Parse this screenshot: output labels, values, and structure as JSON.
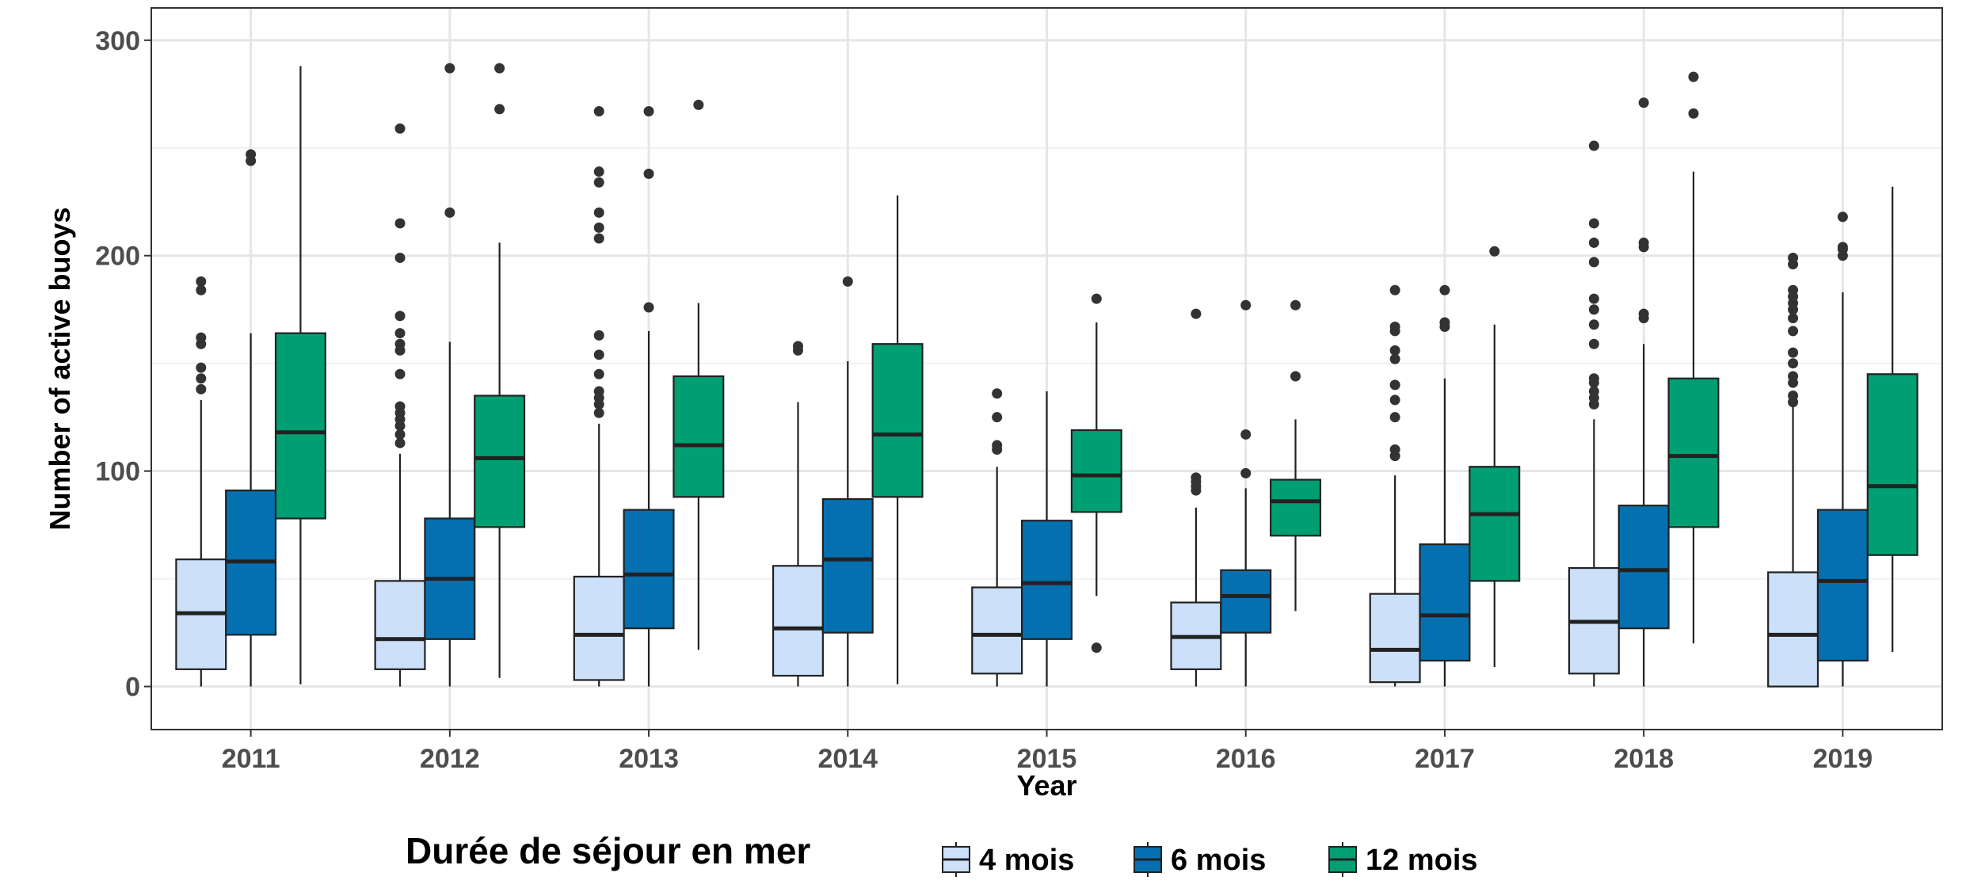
{
  "chart_data": {
    "type": "boxplot",
    "xlabel": "Year",
    "ylabel": "Number of active buoys",
    "categories": [
      "2011",
      "2012",
      "2013",
      "2014",
      "2015",
      "2016",
      "2017",
      "2018",
      "2019"
    ],
    "ylim": [
      -20,
      315
    ],
    "yticks": [
      0,
      100,
      200,
      300
    ],
    "grid": true,
    "legend": {
      "title": "Durée de séjour en mer",
      "position": "bottom"
    },
    "series": [
      {
        "name": "4 mois",
        "color": "#cce0fa",
        "boxes": [
          {
            "min": 0,
            "q1": 8,
            "median": 34,
            "q3": 59,
            "max": 133,
            "outliers": [
              138,
              143,
              148,
              159,
              162,
              184,
              188
            ]
          },
          {
            "min": 0,
            "q1": 8,
            "median": 22,
            "q3": 49,
            "max": 108,
            "outliers": [
              113,
              117,
              121,
              124,
              127,
              130,
              145,
              156,
              159,
              164,
              172,
              199,
              215,
              259
            ]
          },
          {
            "min": 0,
            "q1": 3,
            "median": 24,
            "q3": 51,
            "max": 122,
            "outliers": [
              127,
              131,
              134,
              137,
              145,
              154,
              163,
              208,
              213,
              220,
              234,
              239,
              267
            ]
          },
          {
            "min": 0,
            "q1": 5,
            "median": 27,
            "q3": 56,
            "max": 132,
            "outliers": [
              156,
              158
            ]
          },
          {
            "min": 0,
            "q1": 6,
            "median": 24,
            "q3": 46,
            "max": 102,
            "outliers": [
              110,
              112,
              125,
              136
            ]
          },
          {
            "min": 0,
            "q1": 8,
            "median": 23,
            "q3": 39,
            "max": 83,
            "outliers": [
              91,
              93,
              95,
              97,
              173
            ]
          },
          {
            "min": 0,
            "q1": 2,
            "median": 17,
            "q3": 43,
            "max": 98,
            "outliers": [
              107,
              110,
              125,
              133,
              140,
              152,
              156,
              165,
              167,
              184
            ]
          },
          {
            "min": 0,
            "q1": 6,
            "median": 30,
            "q3": 55,
            "max": 124,
            "outliers": [
              131,
              134,
              137,
              141,
              143,
              159,
              168,
              175,
              180,
              197,
              206,
              215,
              251
            ]
          },
          {
            "min": 0,
            "q1": 0,
            "median": 24,
            "q3": 53,
            "max": 130,
            "outliers": [
              132,
              135,
              141,
              144,
              150,
              155,
              165,
              171,
              175,
              178,
              181,
              184,
              196,
              199
            ]
          }
        ]
      },
      {
        "name": "6 mois",
        "color": "#0570b0",
        "boxes": [
          {
            "min": 0,
            "q1": 24,
            "median": 58,
            "q3": 91,
            "max": 164,
            "outliers": [
              244,
              247
            ]
          },
          {
            "min": 0,
            "q1": 22,
            "median": 50,
            "q3": 78,
            "max": 160,
            "outliers": [
              220,
              287
            ]
          },
          {
            "min": 0,
            "q1": 27,
            "median": 52,
            "q3": 82,
            "max": 165,
            "outliers": [
              176,
              238,
              267
            ]
          },
          {
            "min": 0,
            "q1": 25,
            "median": 59,
            "q3": 87,
            "max": 151,
            "outliers": [
              188
            ]
          },
          {
            "min": 0,
            "q1": 22,
            "median": 48,
            "q3": 77,
            "max": 137,
            "outliers": []
          },
          {
            "min": 0,
            "q1": 25,
            "median": 42,
            "q3": 54,
            "max": 92,
            "outliers": [
              99,
              117,
              177
            ]
          },
          {
            "min": 0,
            "q1": 12,
            "median": 33,
            "q3": 66,
            "max": 143,
            "outliers": [
              167,
              169,
              184
            ]
          },
          {
            "min": 0,
            "q1": 27,
            "median": 54,
            "q3": 84,
            "max": 159,
            "outliers": [
              171,
              173,
              204,
              206,
              271
            ]
          },
          {
            "min": 0,
            "q1": 12,
            "median": 49,
            "q3": 82,
            "max": 183,
            "outliers": [
              200,
              203,
              204,
              218
            ]
          }
        ]
      },
      {
        "name": "12 mois",
        "color": "#009e73",
        "boxes": [
          {
            "min": 1,
            "q1": 78,
            "median": 118,
            "q3": 164,
            "max": 288,
            "outliers": []
          },
          {
            "min": 4,
            "q1": 74,
            "median": 106,
            "q3": 135,
            "max": 206,
            "outliers": [
              268,
              287
            ]
          },
          {
            "min": 17,
            "q1": 88,
            "median": 112,
            "q3": 144,
            "max": 178,
            "outliers": [
              270
            ]
          },
          {
            "min": 1,
            "q1": 88,
            "median": 117,
            "q3": 159,
            "max": 228,
            "outliers": []
          },
          {
            "min": 42,
            "q1": 81,
            "median": 98,
            "q3": 119,
            "max": 169,
            "outliers": [
              18,
              180
            ]
          },
          {
            "min": 35,
            "q1": 70,
            "median": 86,
            "q3": 96,
            "max": 124,
            "outliers": [
              144,
              177
            ]
          },
          {
            "min": 9,
            "q1": 49,
            "median": 80,
            "q3": 102,
            "max": 168,
            "outliers": [
              202
            ]
          },
          {
            "min": 20,
            "q1": 74,
            "median": 107,
            "q3": 143,
            "max": 239,
            "outliers": [
              266,
              283
            ]
          },
          {
            "min": 16,
            "q1": 61,
            "median": 93,
            "q3": 145,
            "max": 232,
            "outliers": []
          }
        ]
      }
    ]
  }
}
